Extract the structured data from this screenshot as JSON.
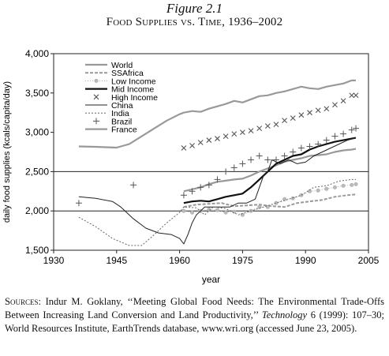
{
  "figure": {
    "label": "Figure 2.1",
    "title": "Food Supplies vs. Time, 1936–2002"
  },
  "chart_data": {
    "type": "line",
    "xlabel": "year",
    "ylabel": "daily food supplies (kcals/capita/day)",
    "xlim": [
      1930,
      2005
    ],
    "ylim": [
      1500,
      4000
    ],
    "xticks": [
      1930,
      1945,
      1960,
      1975,
      1990,
      2005
    ],
    "yticks": [
      1500,
      2000,
      2500,
      3000,
      3500,
      4000
    ],
    "xtick_labels": [
      "1930",
      "1945",
      "1960",
      "1975",
      "1990",
      "2005"
    ],
    "ytick_labels": [
      "1,500",
      "2,000",
      "2,500",
      "3,000",
      "3,500",
      "4,000"
    ],
    "reference_lines": [
      2000,
      2500
    ],
    "grid": false,
    "legend_position": "top-left",
    "series": [
      {
        "name": "World",
        "color": "#999999",
        "style": "thick-solid",
        "marker": "none",
        "x": [
          1961,
          1963,
          1965,
          1967,
          1969,
          1971,
          1973,
          1975,
          1977,
          1979,
          1981,
          1983,
          1985,
          1987,
          1989,
          1991,
          1993,
          1995,
          1997,
          1999,
          2001,
          2002
        ],
        "y": [
          2250,
          2275,
          2300,
          2340,
          2370,
          2385,
          2400,
          2410,
          2450,
          2500,
          2540,
          2580,
          2625,
          2650,
          2670,
          2700,
          2710,
          2720,
          2750,
          2770,
          2780,
          2790
        ]
      },
      {
        "name": "SSAfrica",
        "color": "#999999",
        "style": "dashed-thick",
        "marker": "none",
        "x": [
          1961,
          1964,
          1967,
          1970,
          1973,
          1976,
          1979,
          1982,
          1985,
          1988,
          1991,
          1994,
          1997,
          2000,
          2002
        ],
        "y": [
          2050,
          2080,
          2090,
          2100,
          2060,
          2070,
          2080,
          2060,
          2050,
          2100,
          2120,
          2140,
          2180,
          2200,
          2210
        ]
      },
      {
        "name": "Low Income",
        "color": "#aaaaaa",
        "style": "dotted",
        "marker": "circle",
        "x": [
          1961,
          1963,
          1965,
          1967,
          1969,
          1971,
          1973,
          1975,
          1977,
          1979,
          1981,
          1983,
          1985,
          1987,
          1989,
          1991,
          1993,
          1995,
          1997,
          1999,
          2001,
          2002
        ],
        "y": [
          2000,
          1980,
          2000,
          2020,
          2010,
          1980,
          1990,
          1950,
          2000,
          2050,
          2050,
          2100,
          2150,
          2160,
          2200,
          2250,
          2260,
          2280,
          2300,
          2320,
          2330,
          2340
        ]
      },
      {
        "name": "Mid Income",
        "color": "#111111",
        "style": "thick-solid",
        "marker": "none",
        "x": [
          1961,
          1963,
          1965,
          1967,
          1969,
          1971,
          1973,
          1975,
          1977,
          1979,
          1981,
          1983,
          1985,
          1987,
          1989,
          1991,
          1993,
          1995,
          1997,
          1999,
          2001,
          2002
        ],
        "y": [
          2100,
          2120,
          2130,
          2120,
          2150,
          2180,
          2200,
          2220,
          2300,
          2400,
          2500,
          2600,
          2650,
          2700,
          2720,
          2780,
          2820,
          2850,
          2880,
          2900,
          2920,
          2930
        ]
      },
      {
        "name": "High Income",
        "color": "#555555",
        "style": "none",
        "marker": "x",
        "x": [
          1961,
          1963,
          1965,
          1967,
          1969,
          1971,
          1973,
          1975,
          1977,
          1979,
          1981,
          1983,
          1985,
          1987,
          1989,
          1991,
          1993,
          1995,
          1997,
          1999,
          2001,
          2002
        ],
        "y": [
          2800,
          2830,
          2870,
          2900,
          2920,
          2950,
          2980,
          3000,
          3020,
          3050,
          3080,
          3100,
          3150,
          3180,
          3220,
          3250,
          3280,
          3300,
          3350,
          3400,
          3470,
          3470
        ]
      },
      {
        "name": "China",
        "color": "#222222",
        "style": "thin-solid",
        "marker": "none",
        "x": [
          1936,
          1940,
          1944,
          1946,
          1949,
          1952,
          1955,
          1958,
          1960,
          1961,
          1962,
          1963,
          1964,
          1966,
          1968,
          1970,
          1972,
          1974,
          1976,
          1978,
          1980,
          1981,
          1982,
          1984,
          1986,
          1988,
          1990,
          1992,
          1994,
          1996,
          1998,
          2000,
          2002
        ],
        "y": [
          2180,
          2160,
          2120,
          2050,
          1900,
          1780,
          1720,
          1700,
          1650,
          1580,
          1700,
          1850,
          1950,
          2050,
          2050,
          2050,
          2050,
          2100,
          2100,
          2150,
          2450,
          2500,
          2650,
          2600,
          2650,
          2600,
          2620,
          2700,
          2750,
          2800,
          2850,
          2900,
          2930
        ]
      },
      {
        "name": "India",
        "color": "#666666",
        "style": "short-dashed",
        "marker": "none",
        "x": [
          1936,
          1940,
          1944,
          1948,
          1951,
          1954,
          1957,
          1960,
          1961,
          1964,
          1966,
          1968,
          1971,
          1974,
          1977,
          1980,
          1983,
          1986,
          1989,
          1992,
          1995,
          1998,
          2001,
          2002
        ],
        "y": [
          1920,
          1800,
          1650,
          1560,
          1560,
          1700,
          1850,
          1980,
          2050,
          2040,
          1950,
          2050,
          2030,
          1950,
          2000,
          2050,
          2100,
          2150,
          2200,
          2300,
          2320,
          2380,
          2400,
          2400
        ]
      },
      {
        "name": "Brazil",
        "color": "#555555",
        "style": "none",
        "marker": "plus",
        "x": [
          1936,
          1949,
          1961,
          1963,
          1965,
          1967,
          1969,
          1971,
          1973,
          1975,
          1977,
          1979,
          1981,
          1983,
          1985,
          1987,
          1989,
          1991,
          1993,
          1995,
          1997,
          1999,
          2001,
          2002
        ],
        "y": [
          2100,
          2330,
          2200,
          2250,
          2300,
          2330,
          2400,
          2500,
          2550,
          2600,
          2650,
          2700,
          2650,
          2650,
          2700,
          2750,
          2800,
          2820,
          2850,
          2900,
          2950,
          2980,
          3030,
          3050
        ]
      },
      {
        "name": "France",
        "color": "#999999",
        "style": "thick-solid",
        "marker": "none",
        "x": [
          1936,
          1940,
          1945,
          1948,
          1951,
          1954,
          1957,
          1960,
          1961,
          1963,
          1965,
          1967,
          1969,
          1971,
          1973,
          1975,
          1977,
          1979,
          1981,
          1983,
          1985,
          1987,
          1989,
          1991,
          1993,
          1995,
          1997,
          1999,
          2001,
          2002
        ],
        "y": [
          2820,
          2815,
          2805,
          2850,
          2950,
          3050,
          3150,
          3230,
          3250,
          3270,
          3260,
          3300,
          3330,
          3360,
          3400,
          3380,
          3420,
          3460,
          3470,
          3500,
          3520,
          3550,
          3580,
          3560,
          3550,
          3580,
          3600,
          3620,
          3660,
          3660
        ]
      }
    ]
  },
  "sources": {
    "label": "Sources:",
    "text_1": " Indur M. Goklany, ‘‘Meeting Global Food Needs: The Environmental Trade-Offs Between Increasing Land Conversion and Land Productivity,’’ ",
    "journal": "Technology",
    "text_2": " 6 (1999): 107–30; World Resources Institute, EarthTrends database, www.wri.org (accessed June 23, 2005)."
  }
}
